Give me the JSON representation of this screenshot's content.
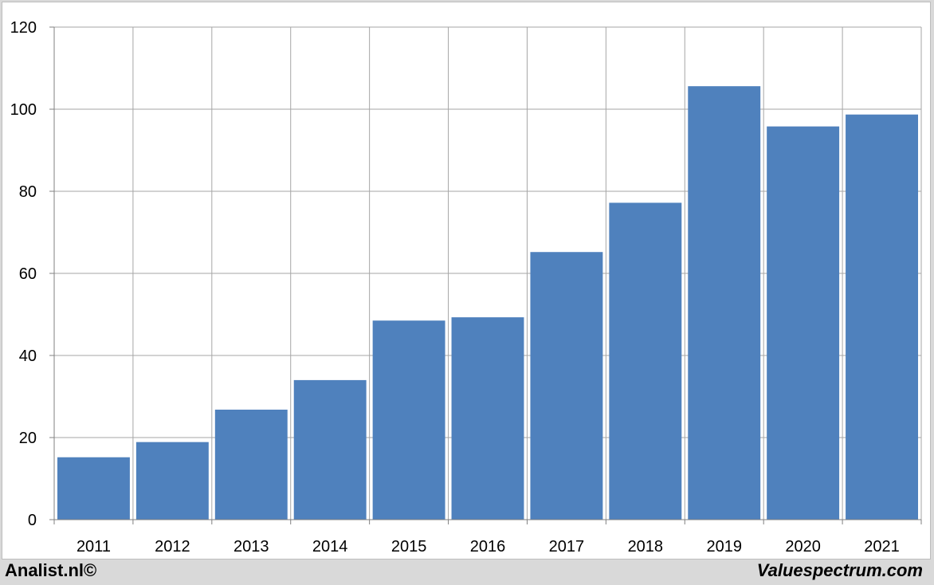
{
  "chart_data": {
    "type": "bar",
    "categories": [
      "2011",
      "2012",
      "2013",
      "2014",
      "2015",
      "2016",
      "2017",
      "2018",
      "2019",
      "2020",
      "2021"
    ],
    "values": [
      15.2,
      18.9,
      26.8,
      34.0,
      48.5,
      49.3,
      65.2,
      77.2,
      105.6,
      95.8,
      98.7
    ],
    "title": "",
    "xlabel": "",
    "ylabel": "",
    "ylim": [
      0,
      120
    ],
    "yticks": [
      0,
      20,
      40,
      60,
      80,
      100,
      120
    ],
    "grid": true,
    "bar_color": "#4f81bd",
    "grid_color": "#a6a6a6"
  },
  "footer": {
    "left": "Analist.nl©",
    "right": "Valuespectrum.com"
  }
}
